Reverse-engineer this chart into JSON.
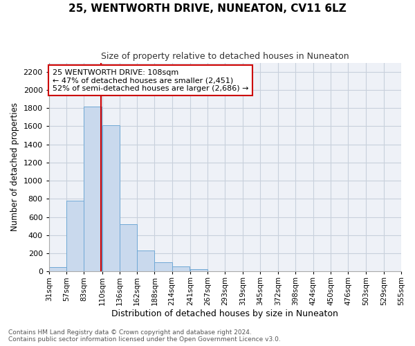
{
  "title": "25, WENTWORTH DRIVE, NUNEATON, CV11 6LZ",
  "subtitle": "Size of property relative to detached houses in Nuneaton",
  "xlabel": "Distribution of detached houses by size in Nuneaton",
  "ylabel": "Number of detached properties",
  "bin_edges": [
    31,
    57,
    83,
    110,
    136,
    162,
    188,
    214,
    241,
    267,
    293,
    319,
    345,
    372,
    398,
    424,
    450,
    476,
    503,
    529,
    555
  ],
  "bar_heights": [
    50,
    780,
    1820,
    1610,
    520,
    230,
    105,
    55,
    25,
    0,
    0,
    0,
    0,
    0,
    0,
    0,
    0,
    0,
    0,
    0
  ],
  "bar_color": "#c9d9ed",
  "bar_edge_color": "#6fa8d5",
  "vline_x": 108,
  "vline_color": "#cc0000",
  "ylim": [
    0,
    2300
  ],
  "yticks": [
    0,
    200,
    400,
    600,
    800,
    1000,
    1200,
    1400,
    1600,
    1800,
    2000,
    2200
  ],
  "grid_color": "#c8d0dc",
  "annotation_box_text_line1": "25 WENTWORTH DRIVE: 108sqm",
  "annotation_box_text_line2": "← 47% of detached houses are smaller (2,451)",
  "annotation_box_text_line3": "52% of semi-detached houses are larger (2,686) →",
  "annotation_box_color": "#ffffff",
  "annotation_box_edge_color": "#cc0000",
  "footer_line1": "Contains HM Land Registry data © Crown copyright and database right 2024.",
  "footer_line2": "Contains public sector information licensed under the Open Government Licence v3.0.",
  "tick_labels": [
    "31sqm",
    "57sqm",
    "83sqm",
    "110sqm",
    "136sqm",
    "162sqm",
    "188sqm",
    "214sqm",
    "241sqm",
    "267sqm",
    "293sqm",
    "319sqm",
    "345sqm",
    "372sqm",
    "398sqm",
    "424sqm",
    "450sqm",
    "476sqm",
    "503sqm",
    "529sqm",
    "555sqm"
  ],
  "background_color": "#eef1f7",
  "title_fontsize": 11,
  "subtitle_fontsize": 9,
  "ylabel_fontsize": 8.5,
  "xlabel_fontsize": 9,
  "tick_fontsize": 7.5,
  "ytick_fontsize": 8,
  "annotation_fontsize": 8,
  "footer_fontsize": 6.5
}
